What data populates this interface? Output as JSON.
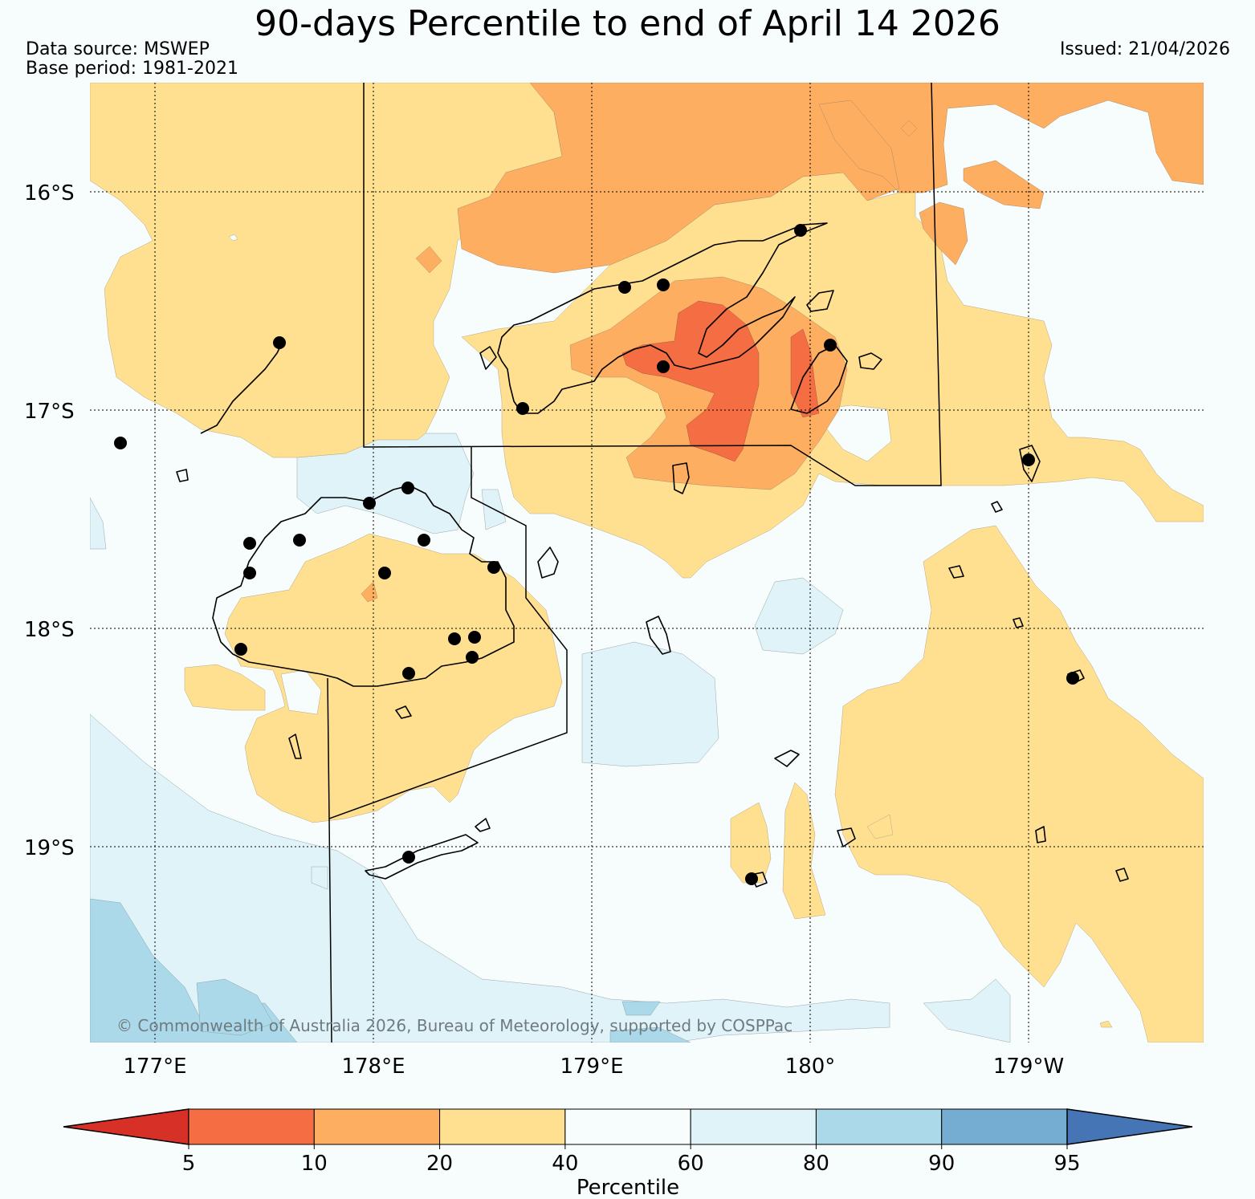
{
  "title": "90-days Percentile to end of April 14 2026",
  "data_source": "Data source: MSWEP",
  "base_period": "Base period: 1981-2021",
  "issued": "Issued: 21/04/2026",
  "latitude_labels": [
    "16°S",
    "17°S",
    "18°S",
    "19°S"
  ],
  "longitude_labels": [
    "177°E",
    "178°E",
    "179°E",
    "180°",
    "179°W"
  ],
  "copyright": "© Commonwealth of Australia 2026, Bureau of Meteorology, supported by COSPPac",
  "colorbar": {
    "label": "Percentile",
    "ticks": [
      "5",
      "10",
      "20",
      "40",
      "60",
      "80",
      "90",
      "95"
    ],
    "bins": [
      {
        "range": "<5",
        "color": "#d73027"
      },
      {
        "range": "5-10",
        "color": "#f46d43"
      },
      {
        "range": "10-20",
        "color": "#fdae61"
      },
      {
        "range": "20-40",
        "color": "#fee090"
      },
      {
        "range": "40-60",
        "color": "#f7fcfd"
      },
      {
        "range": "60-80",
        "color": "#e0f3f8"
      },
      {
        "range": "80-90",
        "color": "#abd9e9"
      },
      {
        "range": "90-95",
        "color": "#74add1"
      },
      {
        "range": ">95",
        "color": "#4575b4"
      }
    ]
  },
  "colors": {
    "background": "#f7fcfd",
    "coastline": "#000000",
    "station": "#000000"
  }
}
